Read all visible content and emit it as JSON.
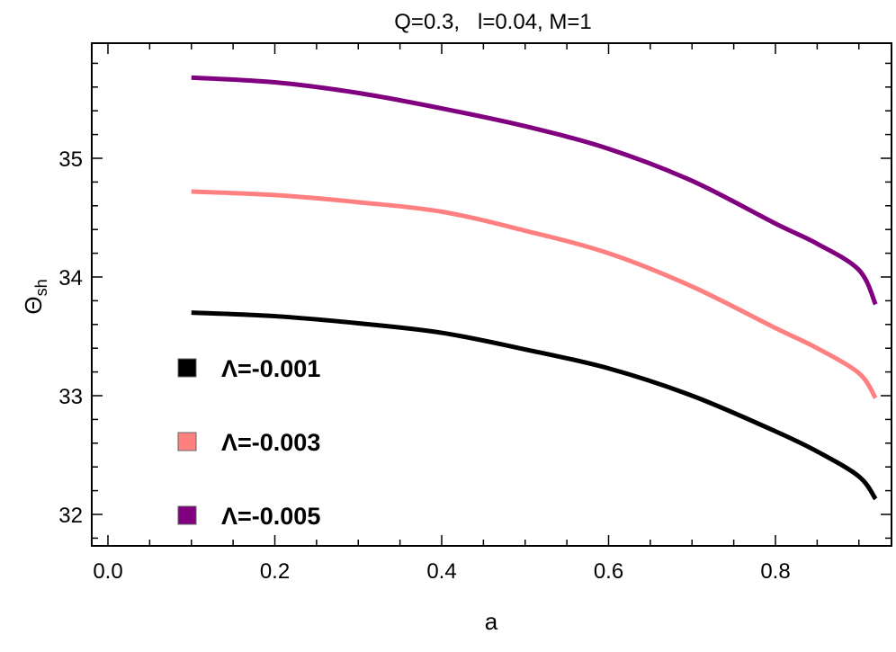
{
  "chart_data": {
    "type": "line",
    "title": "Q=0.3,   l=0.04, M=1",
    "xlabel": "a",
    "ylabel": "Θ",
    "ylabel_sub": "sh",
    "xlim": [
      -0.02,
      0.95
    ],
    "ylim": [
      31.75,
      35.95
    ],
    "xticks": [
      "0.0",
      "0.2",
      "0.4",
      "0.6",
      "0.8"
    ],
    "xtick_values": [
      0,
      0.2,
      0.4,
      0.6,
      0.8
    ],
    "yticks": [
      "32",
      "33",
      "34",
      "35"
    ],
    "ytick_values": [
      32,
      33,
      34,
      35
    ],
    "grid": false,
    "legend_placement": "bottom-left",
    "x": [
      0.1,
      0.2,
      0.3,
      0.4,
      0.5,
      0.6,
      0.7,
      0.8,
      0.85,
      0.9,
      0.92
    ],
    "series": [
      {
        "name": "Λ=-0.001",
        "color": "#000000",
        "values": [
          33.7,
          33.67,
          33.61,
          33.53,
          33.39,
          33.23,
          33.0,
          32.7,
          32.53,
          32.32,
          32.13
        ]
      },
      {
        "name": "Λ=-0.003",
        "color": "#ff8080",
        "values": [
          34.72,
          34.69,
          34.63,
          34.55,
          34.39,
          34.2,
          33.92,
          33.57,
          33.4,
          33.19,
          32.98
        ]
      },
      {
        "name": "Λ=-0.005",
        "color": "#800080",
        "values": [
          35.68,
          35.64,
          35.55,
          35.42,
          35.27,
          35.08,
          34.81,
          34.45,
          34.28,
          34.06,
          33.77
        ]
      }
    ]
  }
}
